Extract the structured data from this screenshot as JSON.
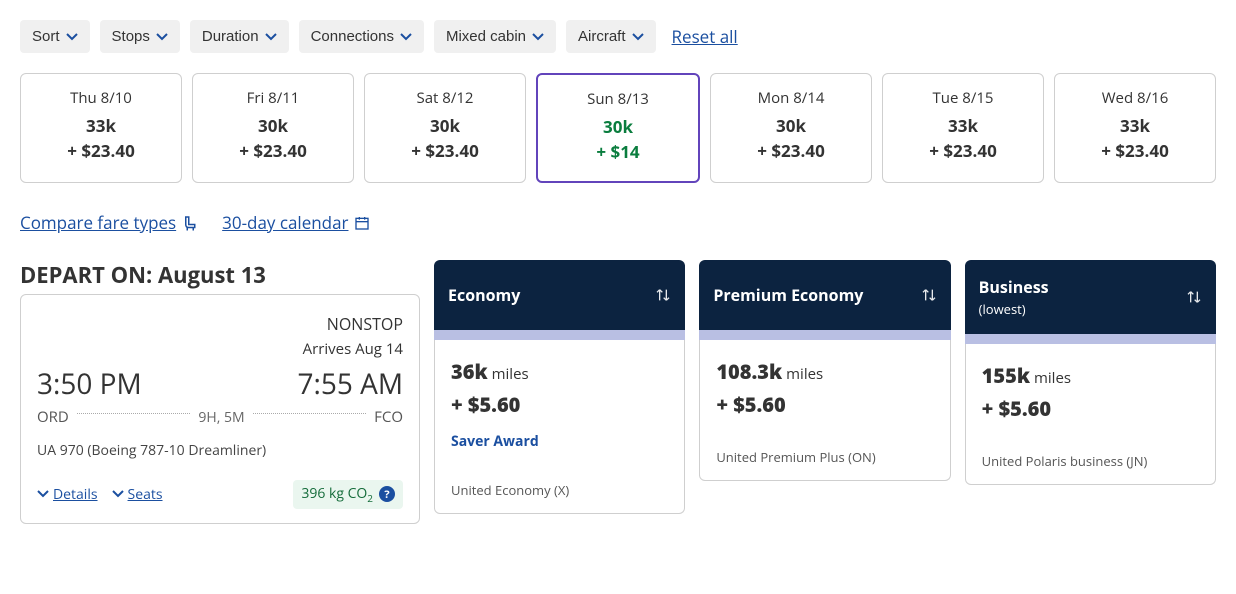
{
  "filters": {
    "sort": "Sort",
    "stops": "Stops",
    "duration": "Duration",
    "connections": "Connections",
    "mixed_cabin": "Mixed cabin",
    "aircraft": "Aircraft",
    "reset": "Reset all"
  },
  "date_tabs": [
    {
      "day": "Thu 8/10",
      "miles": "33k",
      "fee": "+ $23.40",
      "selected": false
    },
    {
      "day": "Fri 8/11",
      "miles": "30k",
      "fee": "+ $23.40",
      "selected": false
    },
    {
      "day": "Sat 8/12",
      "miles": "30k",
      "fee": "+ $23.40",
      "selected": false
    },
    {
      "day": "Sun 8/13",
      "miles": "30k",
      "fee": "+ $14",
      "selected": true
    },
    {
      "day": "Mon 8/14",
      "miles": "30k",
      "fee": "+ $23.40",
      "selected": false
    },
    {
      "day": "Tue 8/15",
      "miles": "33k",
      "fee": "+ $23.40",
      "selected": false
    },
    {
      "day": "Wed 8/16",
      "miles": "33k",
      "fee": "+ $23.40",
      "selected": false
    }
  ],
  "links": {
    "compare": "Compare fare types",
    "calendar": "30-day calendar"
  },
  "depart_heading": "DEPART ON: August 13",
  "flight": {
    "nonstop": "NONSTOP",
    "arrives": "Arrives Aug 14",
    "dep_time": "3:50 PM",
    "arr_time": "7:55 AM",
    "origin": "ORD",
    "dest": "FCO",
    "duration": "9H, 5M",
    "flight_line": "UA 970 (Boeing 787-10 Dreamliner)",
    "details": "Details",
    "seats": "Seats",
    "co2": "396 kg CO",
    "co2_sub": "2"
  },
  "fares": [
    {
      "title": "Economy",
      "subtitle": "",
      "miles_big": "36k",
      "miles_label": "miles",
      "fee": "+ $5.60",
      "tag": "Saver Award",
      "cabin_class": "United Economy (X)"
    },
    {
      "title": "Premium Economy",
      "subtitle": "",
      "miles_big": "108.3k",
      "miles_label": "miles",
      "fee": "+ $5.60",
      "tag": "",
      "cabin_class": "United Premium Plus (ON)"
    },
    {
      "title": "Business",
      "subtitle": "(lowest)",
      "miles_big": "155k",
      "miles_label": "miles",
      "fee": "+ $5.60",
      "tag": "",
      "cabin_class": "United Polaris business (JN)"
    }
  ],
  "colors": {
    "header_bg": "#0c2340",
    "accent_bar": "#b9bfe3",
    "selected_border": "#6244bb",
    "link": "#1b4fa0",
    "cheapest_text": "#0a7d3e",
    "co2_bg": "#eaf6ef",
    "co2_text": "#156c3b",
    "pill_bg": "#f0f0f0",
    "border": "#cfcfcf"
  }
}
